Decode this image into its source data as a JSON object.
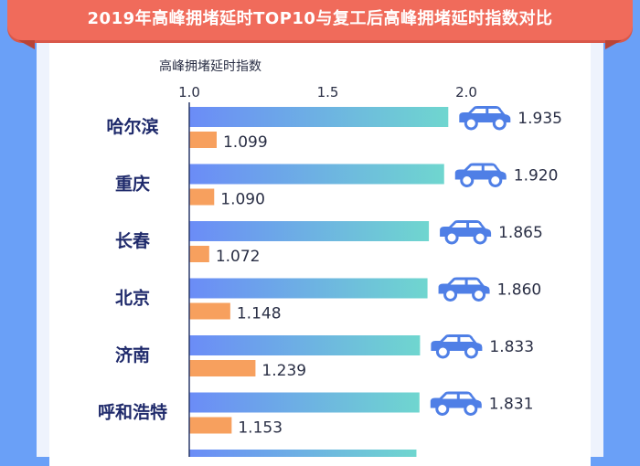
{
  "chart_data": {
    "type": "bar",
    "title": "2019年高峰拥堵延时TOP10与复工后高峰拥堵延时指数对比",
    "axis_title": "高峰拥堵延时指数",
    "xlim": [
      1.0,
      2.0
    ],
    "ticks": [
      {
        "value": 1.0,
        "label": "1.0"
      },
      {
        "value": 1.5,
        "label": "1.5"
      },
      {
        "value": 2.0,
        "label": "2.0"
      }
    ],
    "categories": [
      "哈尔滨",
      "重庆",
      "长春",
      "北京",
      "济南",
      "呼和浩特"
    ],
    "series": [
      {
        "values": [
          1.935,
          1.92,
          1.865,
          1.86,
          1.833,
          1.831
        ],
        "labels": [
          "1.935",
          "1.920",
          "1.865",
          "1.860",
          "1.833",
          "1.831"
        ],
        "color_start": "#6b8cf7",
        "color_end": "#6fd6cf"
      },
      {
        "values": [
          1.099,
          1.09,
          1.072,
          1.148,
          1.239,
          1.153
        ],
        "labels": [
          "1.099",
          "1.090",
          "1.072",
          "1.148",
          "1.239",
          "1.153"
        ],
        "color": "#f7a05e"
      }
    ],
    "marker_icon": "car-icon",
    "colors": {
      "category_text": "#1f2a6b",
      "car": "#4f7fe6",
      "axis": "#2b3a6b",
      "value_text": "#2a2f45"
    }
  }
}
